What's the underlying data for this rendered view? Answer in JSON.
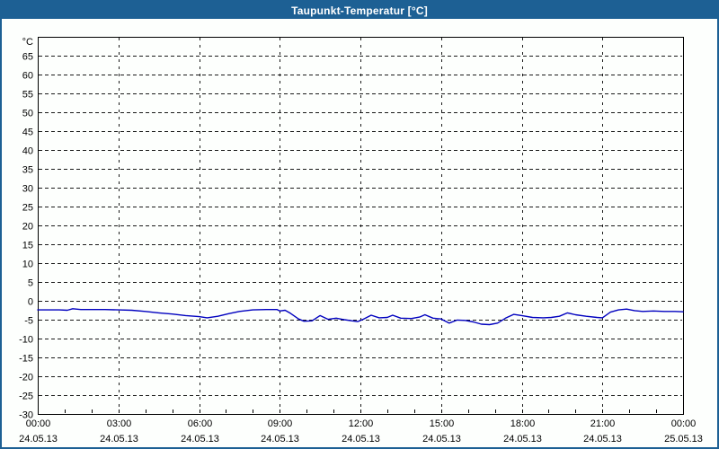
{
  "window": {
    "title": "Taupunkt-Temperatur [°C]",
    "colors": {
      "title_bar": "#1d6094",
      "border": "#1d6094",
      "background": "#fdfffd",
      "axis": "#000000",
      "grid": "#1a1a1a"
    }
  },
  "chart_data": {
    "type": "line",
    "title": "Taupunkt-Temperatur [°C]",
    "ylabel": "°C",
    "ylim": [
      -30,
      70
    ],
    "y_tick_labels": [
      65,
      60,
      55,
      50,
      45,
      40,
      35,
      30,
      25,
      20,
      15,
      10,
      5,
      0,
      -5,
      -10,
      -15,
      -20,
      -25,
      -30
    ],
    "xlim_hours": [
      0,
      24
    ],
    "x_ticks": [
      {
        "hour": 0,
        "time": "00:00",
        "date": "24.05.13"
      },
      {
        "hour": 3,
        "time": "03:00",
        "date": "24.05.13"
      },
      {
        "hour": 6,
        "time": "06:00",
        "date": "24.05.13"
      },
      {
        "hour": 9,
        "time": "09:00",
        "date": "24.05.13"
      },
      {
        "hour": 12,
        "time": "12:00",
        "date": "24.05.13"
      },
      {
        "hour": 15,
        "time": "15:00",
        "date": "24.05.13"
      },
      {
        "hour": 18,
        "time": "18:00",
        "date": "24.05.13"
      },
      {
        "hour": 21,
        "time": "21:00",
        "date": "24.05.13"
      },
      {
        "hour": 24,
        "time": "00:00",
        "date": "25.05.13"
      }
    ],
    "minor_x_tick_interval_hours": 1,
    "grid": "dashed",
    "legend": "none",
    "line_color": "#0000bf",
    "series": [
      {
        "name": "Taupunkt-Temperatur",
        "points": [
          [
            0.0,
            -2.4
          ],
          [
            0.4,
            -2.4
          ],
          [
            0.8,
            -2.4
          ],
          [
            1.1,
            -2.5
          ],
          [
            1.3,
            -2.1
          ],
          [
            1.6,
            -2.3
          ],
          [
            2.0,
            -2.3
          ],
          [
            2.5,
            -2.3
          ],
          [
            3.0,
            -2.4
          ],
          [
            3.5,
            -2.5
          ],
          [
            4.0,
            -2.8
          ],
          [
            4.5,
            -3.2
          ],
          [
            5.0,
            -3.5
          ],
          [
            5.5,
            -3.9
          ],
          [
            6.0,
            -4.2
          ],
          [
            6.3,
            -4.5
          ],
          [
            6.7,
            -4.1
          ],
          [
            7.1,
            -3.4
          ],
          [
            7.5,
            -2.8
          ],
          [
            8.0,
            -2.4
          ],
          [
            8.5,
            -2.3
          ],
          [
            8.9,
            -2.3
          ],
          [
            9.0,
            -2.7
          ],
          [
            9.2,
            -2.5
          ],
          [
            9.4,
            -3.3
          ],
          [
            9.7,
            -4.8
          ],
          [
            9.9,
            -5.4
          ],
          [
            10.2,
            -5.3
          ],
          [
            10.5,
            -3.9
          ],
          [
            10.8,
            -4.9
          ],
          [
            11.1,
            -4.6
          ],
          [
            11.4,
            -5.0
          ],
          [
            11.7,
            -5.3
          ],
          [
            11.9,
            -5.5
          ],
          [
            12.1,
            -4.9
          ],
          [
            12.4,
            -3.8
          ],
          [
            12.7,
            -4.5
          ],
          [
            13.0,
            -4.4
          ],
          [
            13.2,
            -3.8
          ],
          [
            13.5,
            -4.6
          ],
          [
            13.9,
            -4.7
          ],
          [
            14.2,
            -4.3
          ],
          [
            14.4,
            -3.7
          ],
          [
            14.7,
            -4.6
          ],
          [
            15.0,
            -4.8
          ],
          [
            15.3,
            -5.9
          ],
          [
            15.6,
            -5.1
          ],
          [
            15.9,
            -5.2
          ],
          [
            16.2,
            -5.6
          ],
          [
            16.5,
            -6.2
          ],
          [
            16.8,
            -6.3
          ],
          [
            17.1,
            -5.9
          ],
          [
            17.4,
            -4.6
          ],
          [
            17.7,
            -3.6
          ],
          [
            18.0,
            -3.9
          ],
          [
            18.4,
            -4.4
          ],
          [
            18.8,
            -4.5
          ],
          [
            19.1,
            -4.4
          ],
          [
            19.4,
            -4.1
          ],
          [
            19.7,
            -3.2
          ],
          [
            20.0,
            -3.7
          ],
          [
            20.4,
            -4.1
          ],
          [
            20.8,
            -4.4
          ],
          [
            21.0,
            -4.5
          ],
          [
            21.3,
            -3.0
          ],
          [
            21.6,
            -2.4
          ],
          [
            21.9,
            -2.2
          ],
          [
            22.2,
            -2.6
          ],
          [
            22.5,
            -2.8
          ],
          [
            22.9,
            -2.7
          ],
          [
            23.3,
            -2.8
          ],
          [
            23.7,
            -2.8
          ],
          [
            24.0,
            -2.9
          ]
        ]
      }
    ]
  }
}
